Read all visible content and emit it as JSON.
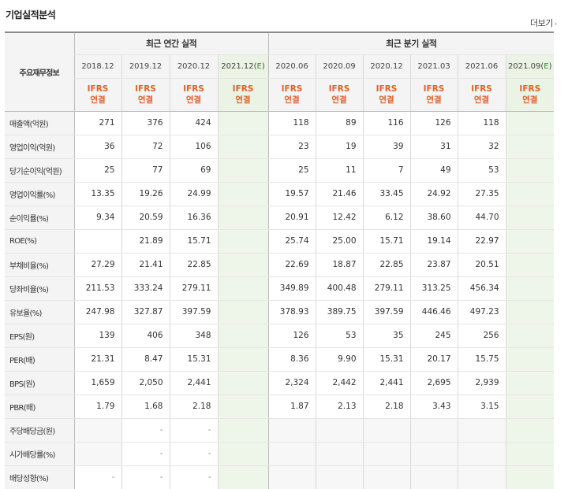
{
  "header": {
    "title": "기업실적분석",
    "more": "더보기"
  },
  "table": {
    "corner": "주요재무정보",
    "groups": {
      "annual": "최근 연간 실적",
      "quarterly": "최근 분기 실적"
    },
    "periods": [
      "2018.12",
      "2019.12",
      "2020.12",
      "2021.12(E)",
      "2020.06",
      "2020.09",
      "2020.12",
      "2021.03",
      "2021.06",
      "2021.09(E)"
    ],
    "ifrs_top": "IFRS",
    "ifrs_bottom": "연결",
    "rows": [
      {
        "label": "매출액(억원)",
        "values": [
          "271",
          "376",
          "424",
          "",
          "118",
          "89",
          "116",
          "126",
          "118",
          ""
        ]
      },
      {
        "label": "영업이익(억원)",
        "values": [
          "36",
          "72",
          "106",
          "",
          "23",
          "19",
          "39",
          "31",
          "32",
          ""
        ]
      },
      {
        "label": "당기순이익(억원)",
        "values": [
          "25",
          "77",
          "69",
          "",
          "25",
          "11",
          "7",
          "49",
          "53",
          ""
        ]
      },
      {
        "label": "영업이익률(%)",
        "values": [
          "13.35",
          "19.26",
          "24.99",
          "",
          "19.57",
          "21.46",
          "33.45",
          "24.92",
          "27.35",
          ""
        ]
      },
      {
        "label": "순이익률(%)",
        "values": [
          "9.34",
          "20.59",
          "16.36",
          "",
          "20.91",
          "12.42",
          "6.12",
          "38.60",
          "44.70",
          ""
        ]
      },
      {
        "label": "ROE(%)",
        "values": [
          "",
          "21.89",
          "15.71",
          "",
          "25.74",
          "25.00",
          "15.71",
          "19.14",
          "22.97",
          ""
        ]
      },
      {
        "label": "부채비율(%)",
        "values": [
          "27.29",
          "21.41",
          "22.85",
          "",
          "22.69",
          "18.87",
          "22.85",
          "23.87",
          "20.51",
          ""
        ]
      },
      {
        "label": "당좌비율(%)",
        "values": [
          "211.53",
          "333.24",
          "279.11",
          "",
          "349.89",
          "400.48",
          "279.11",
          "313.25",
          "456.34",
          ""
        ]
      },
      {
        "label": "유보율(%)",
        "values": [
          "247.98",
          "327.87",
          "397.59",
          "",
          "378.93",
          "389.75",
          "397.59",
          "446.46",
          "497.23",
          ""
        ]
      },
      {
        "label": "EPS(원)",
        "values": [
          "139",
          "406",
          "348",
          "",
          "126",
          "53",
          "35",
          "245",
          "256",
          ""
        ]
      },
      {
        "label": "PER(배)",
        "values": [
          "21.31",
          "8.47",
          "15.31",
          "",
          "8.36",
          "9.90",
          "15.31",
          "20.17",
          "15.75",
          ""
        ]
      },
      {
        "label": "BPS(원)",
        "values": [
          "1,659",
          "2,050",
          "2,441",
          "",
          "2,324",
          "2,442",
          "2,441",
          "2,695",
          "2,939",
          ""
        ]
      },
      {
        "label": "PBR(배)",
        "values": [
          "1.79",
          "1.68",
          "2.18",
          "",
          "1.87",
          "2.13",
          "2.18",
          "3.43",
          "3.15",
          ""
        ]
      },
      {
        "label": "주당배당금(원)",
        "values": [
          "",
          "-",
          "-",
          "",
          "",
          "",
          "",
          "",
          "",
          ""
        ]
      },
      {
        "label": "시가배당률(%)",
        "values": [
          "",
          "-",
          "-",
          "",
          "",
          "",
          "",
          "",
          "",
          ""
        ]
      },
      {
        "label": "배당성향(%)",
        "values": [
          "-",
          "-",
          "-",
          "",
          "",
          "",
          "",
          "",
          "",
          ""
        ]
      }
    ]
  }
}
